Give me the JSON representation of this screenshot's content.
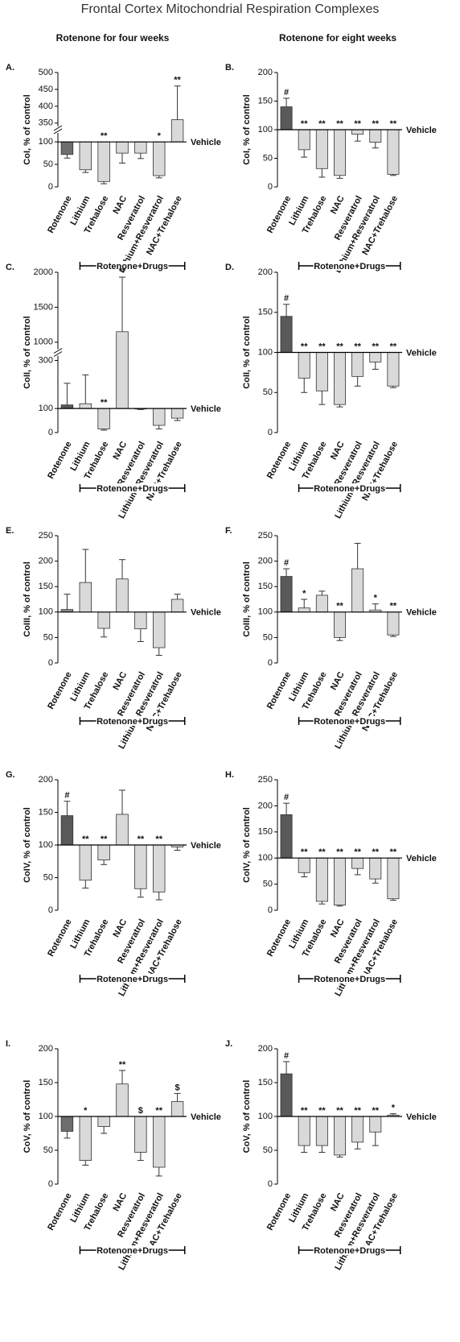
{
  "title": "Frontal Cortex Mitochondrial Respiration Complexes",
  "columns": [
    "Rotenone for four weeks",
    "Rotenone for eight weeks"
  ],
  "chart_data": [
    {
      "type": "bar",
      "label": "A.",
      "ylabel": "CoI, % of control",
      "categories": [
        "Rotenone",
        "Lithium",
        "Trehalose",
        "NAC",
        "Resveratrol",
        "Lithium+Resveratrol",
        "NAC+Trehalose"
      ],
      "values": [
        72,
        38,
        12,
        75,
        75,
        25,
        360
      ],
      "errors": [
        8,
        6,
        5,
        22,
        12,
        5,
        100
      ],
      "annotations": [
        null,
        null,
        "**",
        null,
        null,
        "*",
        "**"
      ],
      "colors": [
        "#6e6e6e",
        "#d9d9d9",
        "#d9d9d9",
        "#d9d9d9",
        "#d9d9d9",
        "#d9d9d9",
        "#d9d9d9"
      ],
      "ylim": [
        0,
        500
      ],
      "yticks": [
        0,
        50,
        100,
        350,
        400,
        450,
        500
      ],
      "ybreak": [
        120,
        340
      ],
      "baseline": 100,
      "reference_label": "Vehicle",
      "group_label": "Rotenone+Drugs"
    },
    {
      "type": "bar",
      "label": "B.",
      "ylabel": "CoI, % of control",
      "categories": [
        "Rotenone",
        "Lithium",
        "Trehalose",
        "NAC",
        "Resveratrol",
        "Lithium+Resveratrol",
        "NAC+Trehalose"
      ],
      "values": [
        140,
        65,
        32,
        20,
        92,
        78,
        22
      ],
      "errors": [
        15,
        13,
        15,
        5,
        12,
        10,
        2
      ],
      "annotations": [
        "#",
        "**",
        "**",
        "**",
        "**",
        "**",
        "**"
      ],
      "colors": [
        "#595959",
        "#d9d9d9",
        "#d9d9d9",
        "#d9d9d9",
        "#d9d9d9",
        "#d9d9d9",
        "#d9d9d9"
      ],
      "ylim": [
        0,
        200
      ],
      "yticks": [
        0,
        50,
        100,
        150,
        200
      ],
      "baseline": 100,
      "reference_label": "Vehicle",
      "group_label": "Rotenone+Drugs"
    },
    {
      "type": "bar",
      "label": "C.",
      "ylabel": "CoII, % of control",
      "categories": [
        "Rotenone",
        "Lithium",
        "Trehalose",
        "NAC",
        "Resveratrol",
        "Lithium+Resveratrol",
        "NAC+Trehalose"
      ],
      "values": [
        115,
        120,
        15,
        1150,
        98,
        30,
        60
      ],
      "errors": [
        90,
        120,
        5,
        780,
        2,
        15,
        10
      ],
      "annotations": [
        null,
        null,
        "**",
        "**",
        null,
        null,
        null
      ],
      "colors": [
        "#595959",
        "#d9d9d9",
        "#d9d9d9",
        "#d9d9d9",
        "#d9d9d9",
        "#d9d9d9",
        "#d9d9d9"
      ],
      "ylim": [
        0,
        2000
      ],
      "yticks": [
        0,
        100,
        300,
        1000,
        1500,
        2000
      ],
      "ybreak": [
        320,
        900
      ],
      "baseline": 100,
      "reference_label": "Vehicle",
      "group_label": "Rotenone+Drugs"
    },
    {
      "type": "bar",
      "label": "D.",
      "ylabel": "CoII, % of control",
      "categories": [
        "Rotenone",
        "Lithium",
        "Trehalose",
        "NAC",
        "Resveratrol",
        "Lithium+Resveratrol",
        "NAC+Trehalose"
      ],
      "values": [
        145,
        68,
        52,
        35,
        70,
        88,
        58
      ],
      "errors": [
        15,
        18,
        17,
        3,
        12,
        9,
        2
      ],
      "annotations": [
        "#",
        "**",
        "**",
        "**",
        "**",
        "**",
        "**"
      ],
      "colors": [
        "#595959",
        "#d9d9d9",
        "#d9d9d9",
        "#d9d9d9",
        "#d9d9d9",
        "#d9d9d9",
        "#d9d9d9"
      ],
      "ylim": [
        0,
        200
      ],
      "yticks": [
        0,
        50,
        100,
        150,
        200
      ],
      "baseline": 100,
      "reference_label": "Vehicle",
      "group_label": "Rotenone+Drugs"
    },
    {
      "type": "bar",
      "label": "E.",
      "ylabel": "CoIII, % of control",
      "categories": [
        "Rotenone",
        "Lithium",
        "Trehalose",
        "NAC",
        "Resveratrol",
        "Lithium+Resveratrol",
        "NAC+Trehalose"
      ],
      "values": [
        105,
        158,
        68,
        165,
        67,
        30,
        125
      ],
      "errors": [
        30,
        65,
        17,
        38,
        25,
        15,
        10
      ],
      "annotations": [
        null,
        null,
        null,
        null,
        null,
        null,
        null
      ],
      "colors": [
        "#8c8c8c",
        "#d9d9d9",
        "#d9d9d9",
        "#d9d9d9",
        "#d9d9d9",
        "#d9d9d9",
        "#d9d9d9"
      ],
      "ylim": [
        0,
        250
      ],
      "yticks": [
        0,
        50,
        100,
        150,
        200,
        250
      ],
      "baseline": 100,
      "reference_label": "Vehicle",
      "group_label": "Rotenone+Drugs"
    },
    {
      "type": "bar",
      "label": "F.",
      "ylabel": "CoIII, % of control",
      "categories": [
        "Rotenone",
        "Lithium",
        "Trehalose",
        "NAC",
        "Resveratrol",
        "Lithium+Resveratrol",
        "NAC+Trehalose"
      ],
      "values": [
        170,
        108,
        133,
        50,
        185,
        104,
        55
      ],
      "errors": [
        15,
        17,
        8,
        6,
        50,
        12,
        3
      ],
      "annotations": [
        "#",
        "*",
        null,
        "**",
        null,
        "*",
        "**"
      ],
      "colors": [
        "#595959",
        "#d9d9d9",
        "#d9d9d9",
        "#d9d9d9",
        "#d9d9d9",
        "#d9d9d9",
        "#d9d9d9"
      ],
      "ylim": [
        0,
        250
      ],
      "yticks": [
        0,
        50,
        100,
        150,
        200,
        250
      ],
      "baseline": 100,
      "reference_label": "Vehicle",
      "group_label": "Rotenone+Drugs"
    },
    {
      "type": "bar",
      "label": "G.",
      "ylabel": "CoIV, % of control",
      "categories": [
        "Rotenone",
        "Lithium",
        "Trehalose",
        "NAC",
        "Resveratrol",
        "Lithium+Resveratrol",
        "NAC+Trehalose"
      ],
      "values": [
        145,
        46,
        77,
        147,
        33,
        28,
        97
      ],
      "errors": [
        22,
        12,
        7,
        37,
        13,
        12,
        5
      ],
      "annotations": [
        "#",
        "**",
        "**",
        null,
        "**",
        "**",
        null
      ],
      "colors": [
        "#595959",
        "#d9d9d9",
        "#d9d9d9",
        "#d9d9d9",
        "#d9d9d9",
        "#d9d9d9",
        "#d9d9d9"
      ],
      "ylim": [
        0,
        200
      ],
      "yticks": [
        0,
        50,
        100,
        150,
        200
      ],
      "baseline": 100,
      "reference_label": "Vehicle",
      "group_label": "Rotenone+Drugs"
    },
    {
      "type": "bar",
      "label": "H.",
      "ylabel": "CoIV, % of control",
      "categories": [
        "Rotenone",
        "Lithium",
        "Trehalose",
        "NAC",
        "Resveratrol",
        "Lithium+Resveratrol",
        "NAC+Trehalose"
      ],
      "values": [
        183,
        72,
        17,
        10,
        80,
        60,
        22
      ],
      "errors": [
        22,
        8,
        5,
        2,
        12,
        8,
        3
      ],
      "annotations": [
        "#",
        "**",
        "**",
        "**",
        "**",
        "**",
        "**"
      ],
      "colors": [
        "#595959",
        "#d9d9d9",
        "#d9d9d9",
        "#d9d9d9",
        "#d9d9d9",
        "#d9d9d9",
        "#d9d9d9"
      ],
      "ylim": [
        0,
        250
      ],
      "yticks": [
        0,
        50,
        100,
        150,
        200,
        250
      ],
      "baseline": 100,
      "reference_label": "Vehicle",
      "group_label": "Rotenone+Drugs"
    },
    {
      "type": "bar",
      "label": "I.",
      "ylabel": "CoV, % of control",
      "categories": [
        "Rotenone",
        "Lithium",
        "Trehalose",
        "NAC",
        "Resveratrol",
        "Lithium+Resveratrol",
        "NAC+Trehalose"
      ],
      "values": [
        78,
        35,
        85,
        148,
        47,
        25,
        122
      ],
      "errors": [
        10,
        7,
        10,
        20,
        12,
        13,
        12
      ],
      "annotations": [
        null,
        "*",
        null,
        "**",
        "$",
        "**",
        "$"
      ],
      "colors": [
        "#6e6e6e",
        "#d9d9d9",
        "#d9d9d9",
        "#d9d9d9",
        "#d9d9d9",
        "#d9d9d9",
        "#d9d9d9"
      ],
      "ylim": [
        0,
        200
      ],
      "yticks": [
        0,
        50,
        100,
        150,
        200
      ],
      "baseline": 100,
      "reference_label": "Vehicle",
      "group_label": "Rotenone+Drugs"
    },
    {
      "type": "bar",
      "label": "J.",
      "ylabel": "CoV, % of control",
      "categories": [
        "Rotenone",
        "Lithium",
        "Trehalose",
        "NAC",
        "Resveratrol",
        "Lithium+Resveratrol",
        "NAC+Trehalose"
      ],
      "values": [
        163,
        57,
        57,
        43,
        62,
        77,
        102
      ],
      "errors": [
        18,
        10,
        10,
        3,
        10,
        20,
        2
      ],
      "annotations": [
        "#",
        "**",
        "**",
        "**",
        "**",
        "**",
        "*"
      ],
      "colors": [
        "#595959",
        "#d9d9d9",
        "#d9d9d9",
        "#d9d9d9",
        "#d9d9d9",
        "#d9d9d9",
        "#d9d9d9"
      ],
      "ylim": [
        0,
        200
      ],
      "yticks": [
        0,
        50,
        100,
        150,
        200
      ],
      "baseline": 100,
      "reference_label": "Vehicle",
      "group_label": "Rotenone+Drugs"
    }
  ]
}
